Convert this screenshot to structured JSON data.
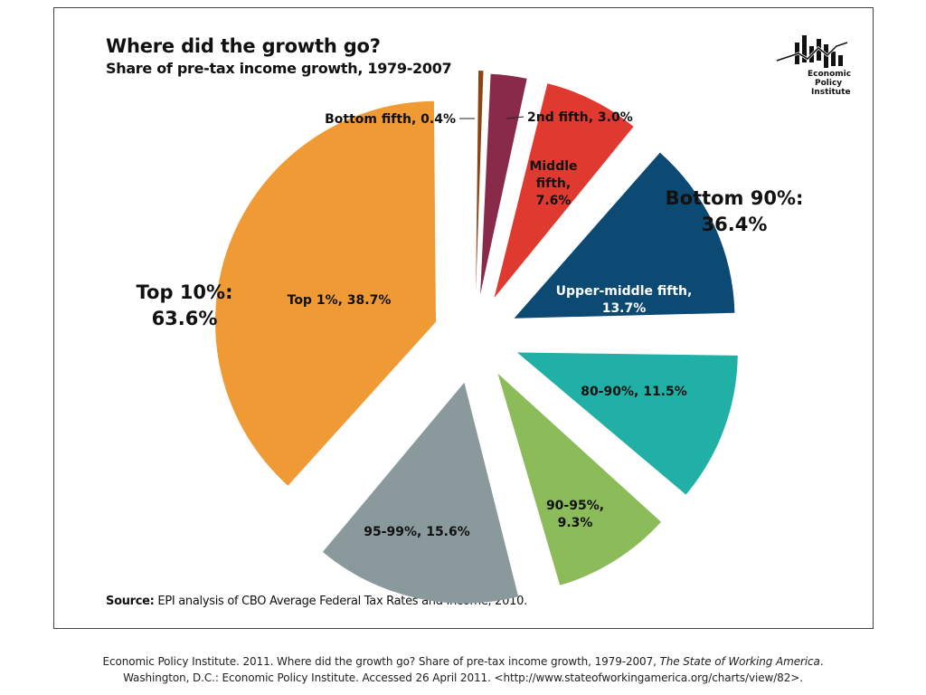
{
  "chart_data": {
    "type": "pie",
    "title": "Where did the growth go?",
    "subtitle": "Share of pre-tax income growth, 1979-2007",
    "slices": [
      {
        "label": "Bottom fifth",
        "value": 0.4,
        "text": "Bottom fifth, 0.4%",
        "color": "#8b4513"
      },
      {
        "label": "2nd fifth",
        "value": 3.0,
        "text": "2nd fifth, 3.0%",
        "color": "#8a2a4b"
      },
      {
        "label": "Middle fifth",
        "value": 7.6,
        "text": "Middle fifth, 7.6%",
        "color": "#e03a30"
      },
      {
        "label": "Upper-middle fifth",
        "value": 13.7,
        "text": "Upper-middle fifth, 13.7%",
        "color": "#0d4a73"
      },
      {
        "label": "80-90%",
        "value": 11.5,
        "text": "80-90%, 11.5%",
        "color": "#20b0a6"
      },
      {
        "label": "90-95%",
        "value": 9.3,
        "text": "90-95%, 9.3%",
        "color": "#8cbb5a"
      },
      {
        "label": "95-99%",
        "value": 15.6,
        "text": "95-99%, 15.6%",
        "color": "#8a9a9c"
      },
      {
        "label": "Top 1%",
        "value": 38.7,
        "text": "Top 1%, 38.7%",
        "color": "#f09a35"
      }
    ],
    "groups": [
      {
        "label": "Bottom 90%:",
        "value": "36.4%"
      },
      {
        "label": "Top 10%:",
        "value": "63.6%"
      }
    ]
  },
  "logo": {
    "line1": "Economic",
    "line2": "Policy",
    "line3": "Institute"
  },
  "source": {
    "label": "Source:",
    "text": " EPI analysis of CBO Average Federal Tax Rates and Income, 2010."
  },
  "citation": {
    "part1": "Economic Policy Institute. 2011. Where did the growth go? Share of pre-tax income growth, 1979-2007, ",
    "italic": "The State of Working America",
    "part2": ".",
    "line2": "Washington, D.C.: Economic Policy Institute.  Accessed 26 April 2011.  <http://www.stateofworkingamerica.org/charts/view/82>."
  }
}
